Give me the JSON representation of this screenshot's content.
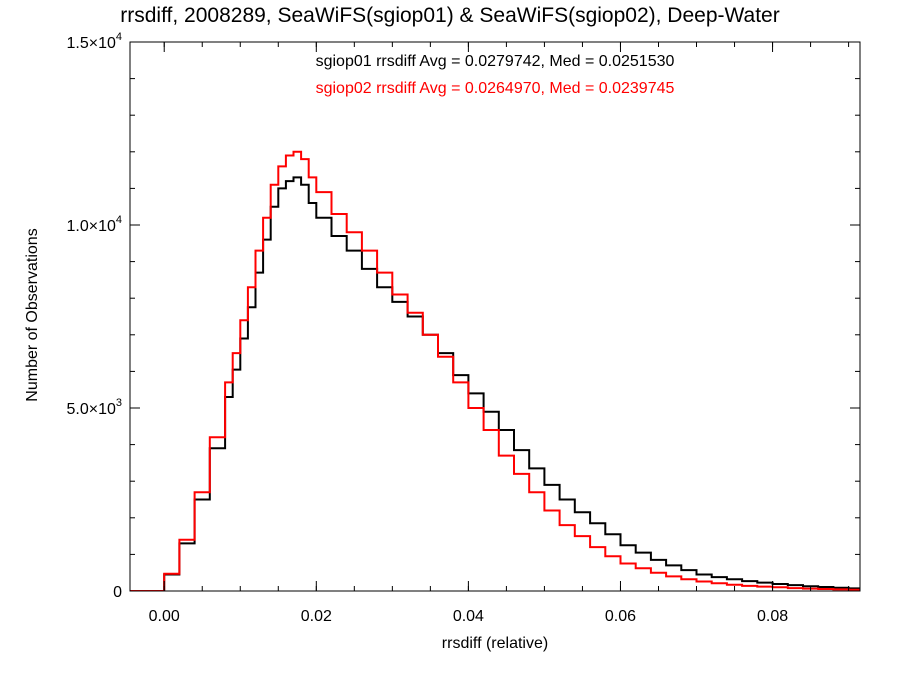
{
  "chart_data": {
    "type": "line",
    "title": "rrsdiff, 2008289, SeaWiFS(sgiop01) & SeaWiFS(sgiop02), Deep-Water",
    "xlabel": "rrsdiff (relative)",
    "ylabel": "Number of Observations",
    "xlim": [
      -0.0045,
      0.0915
    ],
    "ylim": [
      0,
      15000
    ],
    "x_ticks": [
      "0.00",
      "0.02",
      "0.04",
      "0.06",
      "0.08"
    ],
    "x_tick_values": [
      0.0,
      0.02,
      0.04,
      0.06,
      0.08
    ],
    "y_ticks": [
      {
        "value": 0,
        "mantissa": "0",
        "exponent": ""
      },
      {
        "value": 5000,
        "mantissa": "5.0×10",
        "exponent": "3"
      },
      {
        "value": 10000,
        "mantissa": "1.0×10",
        "exponent": "4"
      },
      {
        "value": 15000,
        "mantissa": "1.5×10",
        "exponent": "4"
      }
    ],
    "step": true,
    "annotations": [
      {
        "text": "sgiop01 rrsdiff Avg = 0.0279742, Med = 0.0251530",
        "color": "#000000"
      },
      {
        "text": "sgiop02 rrsdiff Avg = 0.0264970, Med = 0.0239745",
        "color": "#ff0000"
      }
    ],
    "series": [
      {
        "color": "#000000",
        "x": [
          -0.0045,
          -0.001,
          0.0,
          0.002,
          0.004,
          0.006,
          0.008,
          0.009,
          0.01,
          0.011,
          0.012,
          0.013,
          0.014,
          0.015,
          0.016,
          0.017,
          0.018,
          0.019,
          0.02,
          0.022,
          0.024,
          0.026,
          0.028,
          0.03,
          0.032,
          0.034,
          0.036,
          0.038,
          0.04,
          0.042,
          0.044,
          0.046,
          0.048,
          0.05,
          0.052,
          0.054,
          0.056,
          0.058,
          0.06,
          0.062,
          0.064,
          0.066,
          0.068,
          0.07,
          0.072,
          0.074,
          0.076,
          0.078,
          0.08,
          0.082,
          0.084,
          0.086,
          0.088,
          0.09,
          0.0915
        ],
        "y": [
          0,
          0,
          450,
          1300,
          2500,
          3900,
          5300,
          6050,
          6900,
          7750,
          8700,
          9600,
          10500,
          11000,
          11200,
          11300,
          11100,
          10600,
          10200,
          9700,
          9300,
          8800,
          8300,
          7900,
          7500,
          7000,
          6500,
          5900,
          5400,
          4900,
          4400,
          3850,
          3350,
          2900,
          2500,
          2150,
          1850,
          1550,
          1250,
          1050,
          850,
          700,
          570,
          450,
          380,
          320,
          270,
          230,
          190,
          160,
          130,
          110,
          90,
          70,
          60
        ]
      },
      {
        "color": "#ff0000",
        "x": [
          -0.0045,
          -0.001,
          0.0,
          0.002,
          0.004,
          0.006,
          0.008,
          0.009,
          0.01,
          0.011,
          0.012,
          0.013,
          0.014,
          0.015,
          0.016,
          0.017,
          0.018,
          0.019,
          0.02,
          0.022,
          0.024,
          0.026,
          0.028,
          0.03,
          0.032,
          0.034,
          0.036,
          0.038,
          0.04,
          0.042,
          0.044,
          0.046,
          0.048,
          0.05,
          0.052,
          0.054,
          0.056,
          0.058,
          0.06,
          0.062,
          0.064,
          0.066,
          0.068,
          0.07,
          0.072,
          0.074,
          0.076,
          0.078,
          0.08,
          0.082,
          0.084,
          0.086,
          0.088,
          0.09,
          0.0915
        ],
        "y": [
          0,
          0,
          470,
          1400,
          2700,
          4200,
          5700,
          6500,
          7400,
          8300,
          9300,
          10200,
          11100,
          11600,
          11900,
          12000,
          11800,
          11300,
          10900,
          10300,
          9800,
          9300,
          8700,
          8100,
          7600,
          7000,
          6400,
          5700,
          5000,
          4400,
          3700,
          3200,
          2700,
          2200,
          1800,
          1500,
          1200,
          950,
          750,
          620,
          500,
          400,
          320,
          260,
          210,
          170,
          140,
          120,
          100,
          80,
          65,
          55,
          45,
          35,
          30
        ]
      }
    ]
  }
}
